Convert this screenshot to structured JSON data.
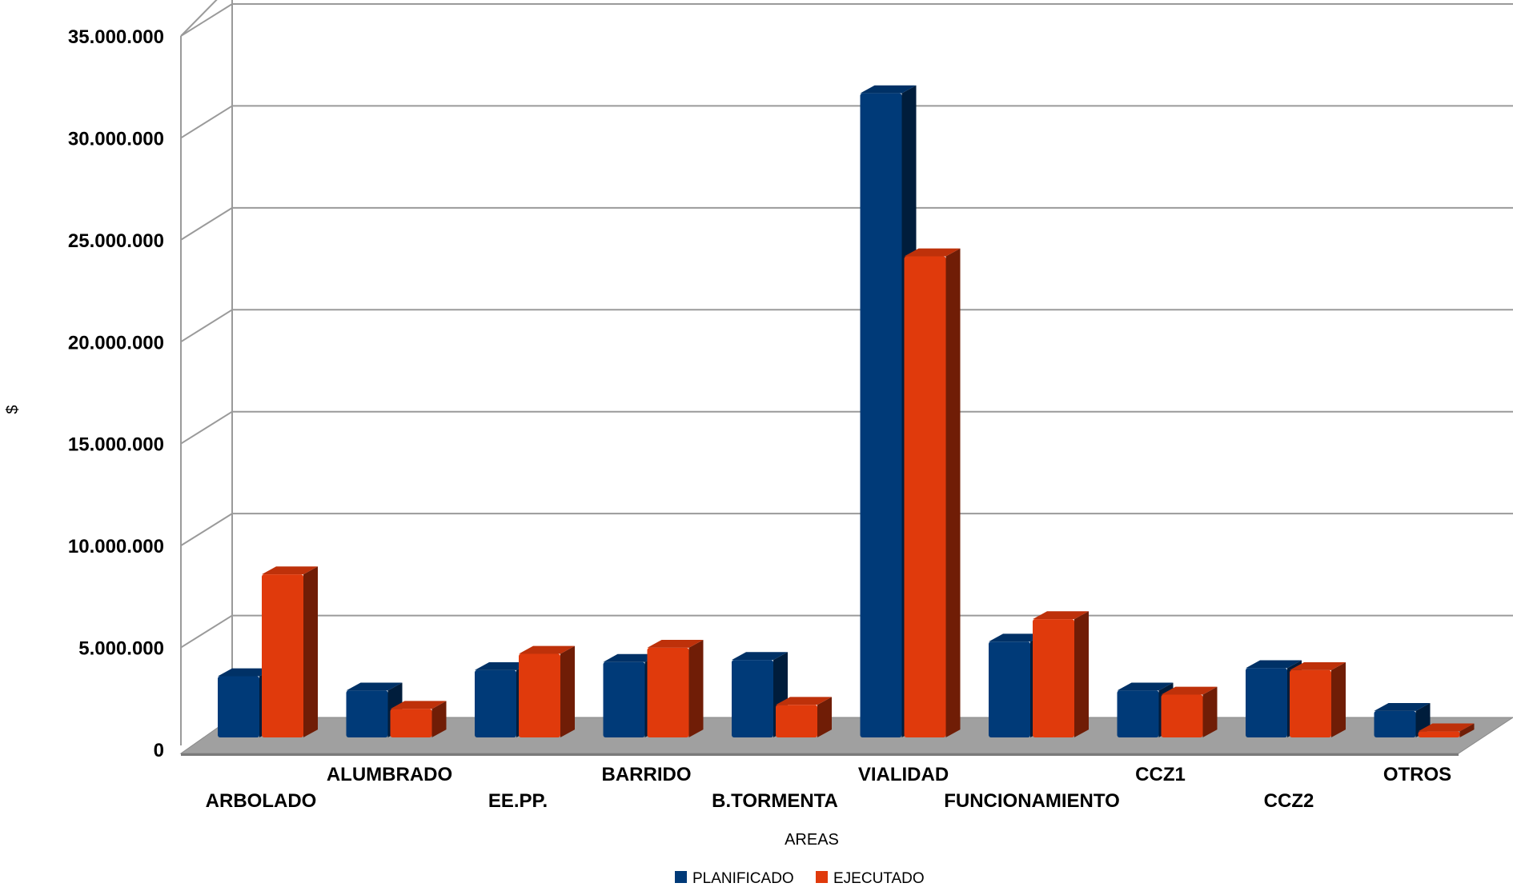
{
  "chart_data": {
    "type": "bar",
    "title": "",
    "xlabel": "AREAS",
    "ylabel": "$",
    "ylim": [
      0,
      35000000
    ],
    "yticks": [
      0,
      5000000,
      10000000,
      15000000,
      20000000,
      25000000,
      30000000,
      35000000
    ],
    "ytick_labels": [
      "0",
      "5.000.000",
      "10.000.000",
      "15.000.000",
      "20.000.000",
      "25.000.000",
      "30.000.000",
      "35.000.000"
    ],
    "grid": true,
    "three_d": true,
    "legend_position": "bottom",
    "categories": [
      "ARBOLADO",
      "ALUMBRADO",
      "EE.PP.",
      "BARRIDO",
      "B.TORMENTA",
      "VIALIDAD",
      "FUNCIONAMIENTO",
      "CCZ1",
      "CCZ2",
      "OTROS"
    ],
    "series": [
      {
        "name": "PLANIFICADO",
        "color": "#003a78",
        "values": [
          3000000,
          2300000,
          3300000,
          3700000,
          3800000,
          31600000,
          4700000,
          2300000,
          3400000,
          1300000
        ]
      },
      {
        "name": "EJECUTADO",
        "color": "#e03a0c",
        "values": [
          8000000,
          1400000,
          4100000,
          4400000,
          1600000,
          23600000,
          5800000,
          2100000,
          3300000,
          300000
        ]
      }
    ]
  }
}
